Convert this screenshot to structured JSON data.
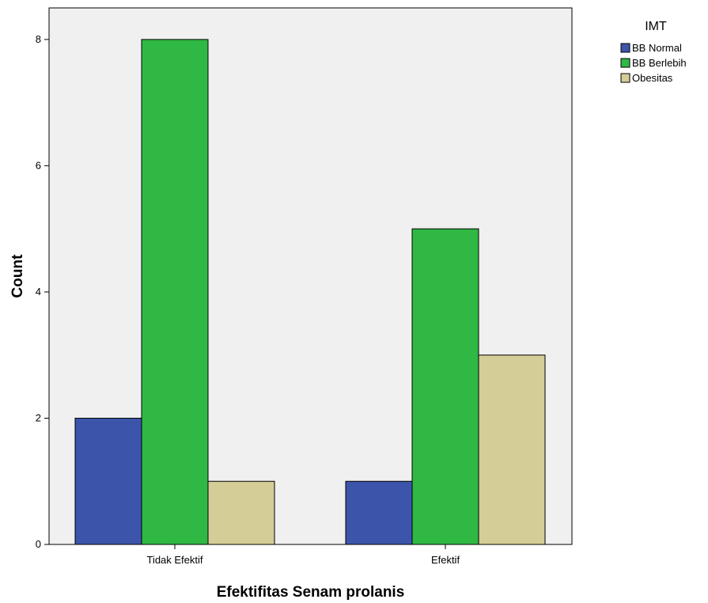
{
  "chart_data": {
    "type": "bar",
    "xlabel": "Efektifitas Senam prolanis",
    "ylabel": "Count",
    "categories": [
      "Tidak Efektif",
      "Efektif"
    ],
    "ylim": [
      0,
      8.5
    ],
    "yticks": [
      0,
      2,
      4,
      6,
      8
    ],
    "grid": false,
    "legend": {
      "title": "IMT",
      "placement": "right"
    },
    "series": [
      {
        "name": "BB Normal",
        "color": "#3c55aa",
        "values": [
          2,
          1
        ]
      },
      {
        "name": "BB Berlebih",
        "color": "#2fb844",
        "values": [
          8,
          5
        ]
      },
      {
        "name": "Obesitas",
        "color": "#d5cd98",
        "values": [
          1,
          3
        ]
      }
    ],
    "colors": {
      "plot_background": "#f0f0f0",
      "bar_outline": "#000000"
    }
  }
}
